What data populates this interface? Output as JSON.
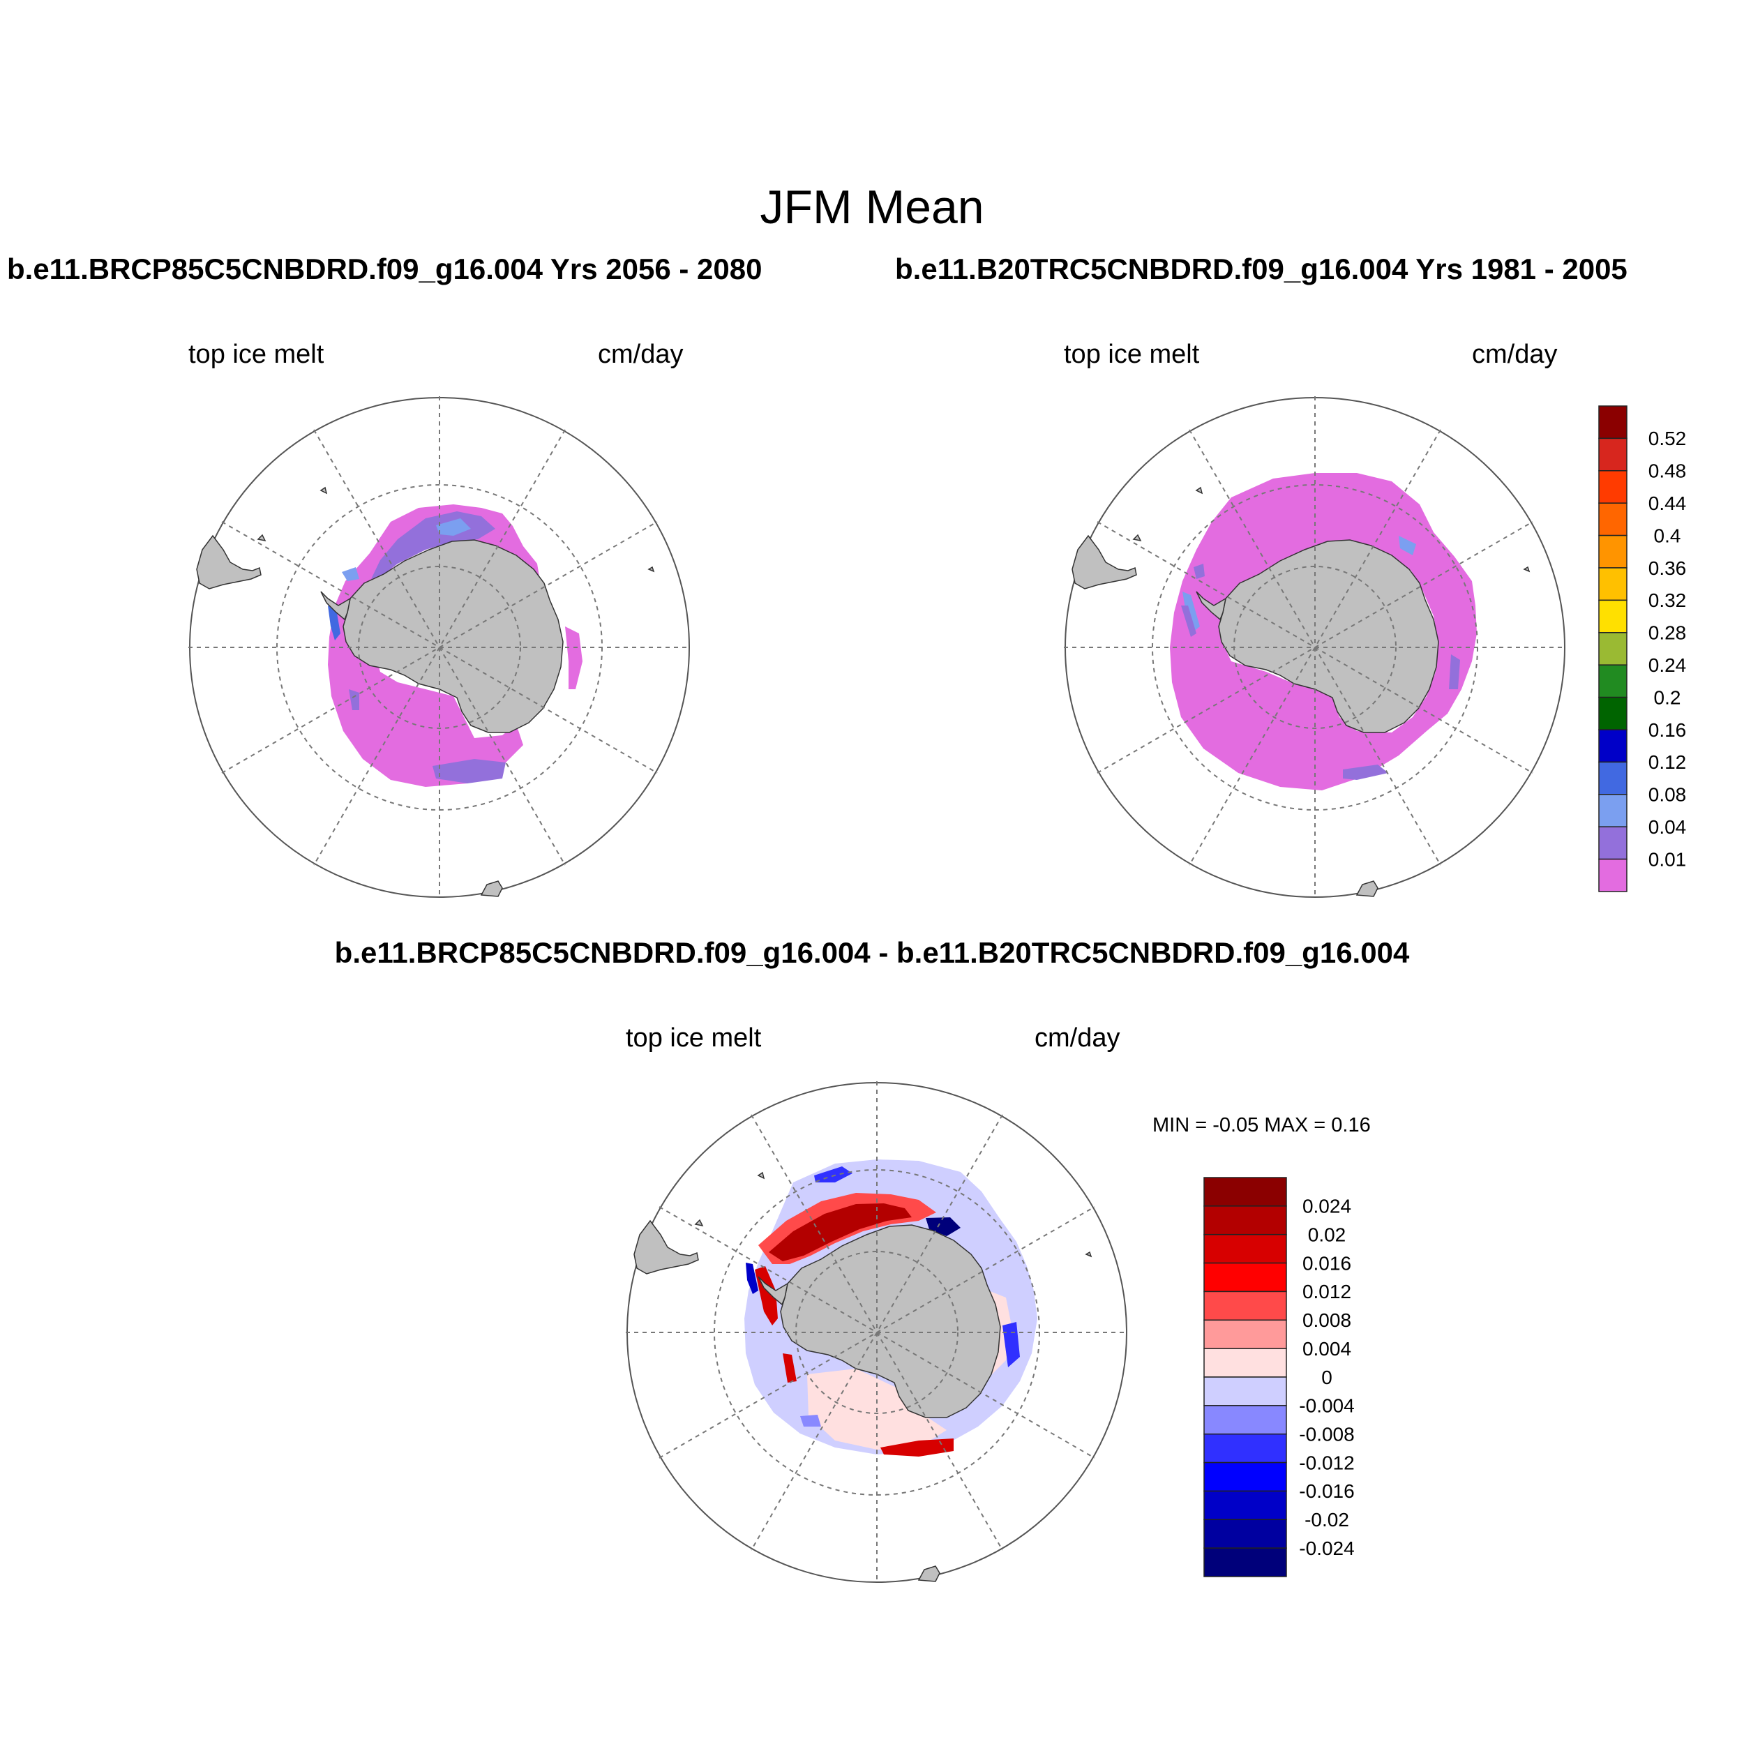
{
  "figure": {
    "title": "JFM Mean",
    "panels": [
      {
        "title": "b.e11.BRCP85C5CNBDRD.f09_g16.004  Yrs 2056 - 2080",
        "var": "top ice melt",
        "units": "cm/day"
      },
      {
        "title": "b.e11.B20TRC5CNBDRD.f09_g16.004  Yrs 1981 - 2005",
        "var": "top ice melt",
        "units": "cm/day"
      },
      {
        "title": "b.e11.BRCP85C5CNBDRD.f09_g16.004 - b.e11.B20TRC5CNBDRD.f09_g16.004",
        "var": "top ice melt",
        "units": "cm/day",
        "minmax": "MIN =  -0.05 MAX =   0.16"
      }
    ]
  },
  "colorbar_main": {
    "labels": [
      "0.52",
      "0.48",
      "0.44",
      "0.4",
      "0.36",
      "0.32",
      "0.28",
      "0.24",
      "0.2",
      "0.16",
      "0.12",
      "0.08",
      "0.04",
      "0.01"
    ],
    "colors": [
      "#8b0000",
      "#d7261e",
      "#ff3b00",
      "#ff6600",
      "#ff9400",
      "#ffc000",
      "#ffe000",
      "#9aba33",
      "#218b21",
      "#006400",
      "#0000c8",
      "#4169e1",
      "#7b9ff0",
      "#9370db",
      "#e36ce0"
    ]
  },
  "colorbar_diff": {
    "labels": [
      "0.024",
      "0.02",
      "0.016",
      "0.012",
      "0.008",
      "0.004",
      "0",
      "-0.004",
      "-0.008",
      "-0.012",
      "-0.016",
      "-0.02",
      "-0.024"
    ],
    "colors": [
      "#8b0000",
      "#b30000",
      "#d70000",
      "#ff0000",
      "#ff4a4a",
      "#ff9a9a",
      "#ffe0e0",
      "#cfcfff",
      "#8888ff",
      "#3030ff",
      "#0000ff",
      "#0000c8",
      "#0000a0",
      "#00007a"
    ]
  },
  "colors": {
    "land": "#c0c0c0",
    "sea_ice_pink": "#e36ce0",
    "purple": "#9370db",
    "light_blue": "#7b9ff0",
    "blue": "#4169e1"
  }
}
